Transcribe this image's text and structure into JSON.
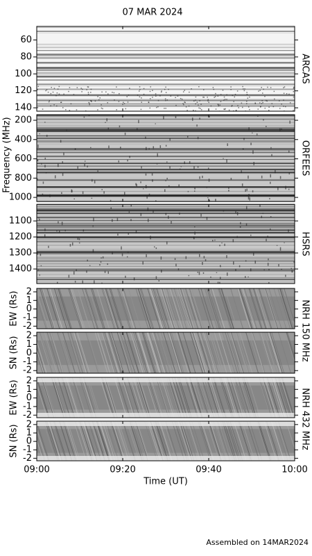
{
  "title": "07 MAR 2024",
  "footer": "Assembled on 14MAR2024",
  "chart_data": [
    {
      "type": "spectrogram",
      "name": "ARCAS",
      "ylabel": "Frequency (MHz)",
      "xlim": [
        540,
        600
      ],
      "ylim": [
        144,
        44
      ],
      "yticks": [
        60,
        80,
        100,
        120,
        140
      ]
    },
    {
      "type": "spectrogram",
      "name": "ORFEES",
      "xlim": [
        540,
        600
      ],
      "ylim": [
        1043,
        142
      ],
      "yticks": [
        200,
        400,
        600,
        800,
        1000
      ]
    },
    {
      "type": "spectrogram",
      "name": "HSRS",
      "xlim": [
        540,
        600
      ],
      "ylim": [
        1491,
        996
      ],
      "yticks": [
        1100,
        1200,
        1300,
        1400
      ]
    },
    {
      "type": "radioheliograph",
      "side_label": "NRH 150 MHz",
      "ylabel": "EW (Rs)",
      "xlim": [
        540,
        600
      ],
      "ylim": [
        -2.3,
        2.4
      ],
      "yticks": [
        2,
        1,
        0,
        -1,
        -2
      ]
    },
    {
      "type": "radioheliograph",
      "ylabel": "SN (Rs)",
      "xlim": [
        540,
        600
      ],
      "ylim": [
        -2.3,
        2.4
      ],
      "yticks": [
        2,
        1,
        0,
        -1,
        -2
      ]
    },
    {
      "type": "radioheliograph",
      "side_label": "NRH 432 MHz",
      "ylabel": "EW (Rs)",
      "xlim": [
        540,
        600
      ],
      "ylim": [
        -2.3,
        2.4
      ],
      "yticks": [
        2,
        1,
        0,
        -1,
        -2
      ]
    },
    {
      "type": "radioheliograph",
      "ylabel": "SN (Rs)",
      "xlabel": "Time (UT)",
      "xlim": [
        540,
        600
      ],
      "ylim": [
        -2.3,
        2.4
      ],
      "yticks": [
        2,
        1,
        0,
        -1,
        -2
      ],
      "xticks": [
        {
          "value": 540,
          "label": "09:00"
        },
        {
          "value": 560,
          "label": "09:20"
        },
        {
          "value": 580,
          "label": "09:40"
        },
        {
          "value": 600,
          "label": "10:00"
        }
      ]
    }
  ]
}
